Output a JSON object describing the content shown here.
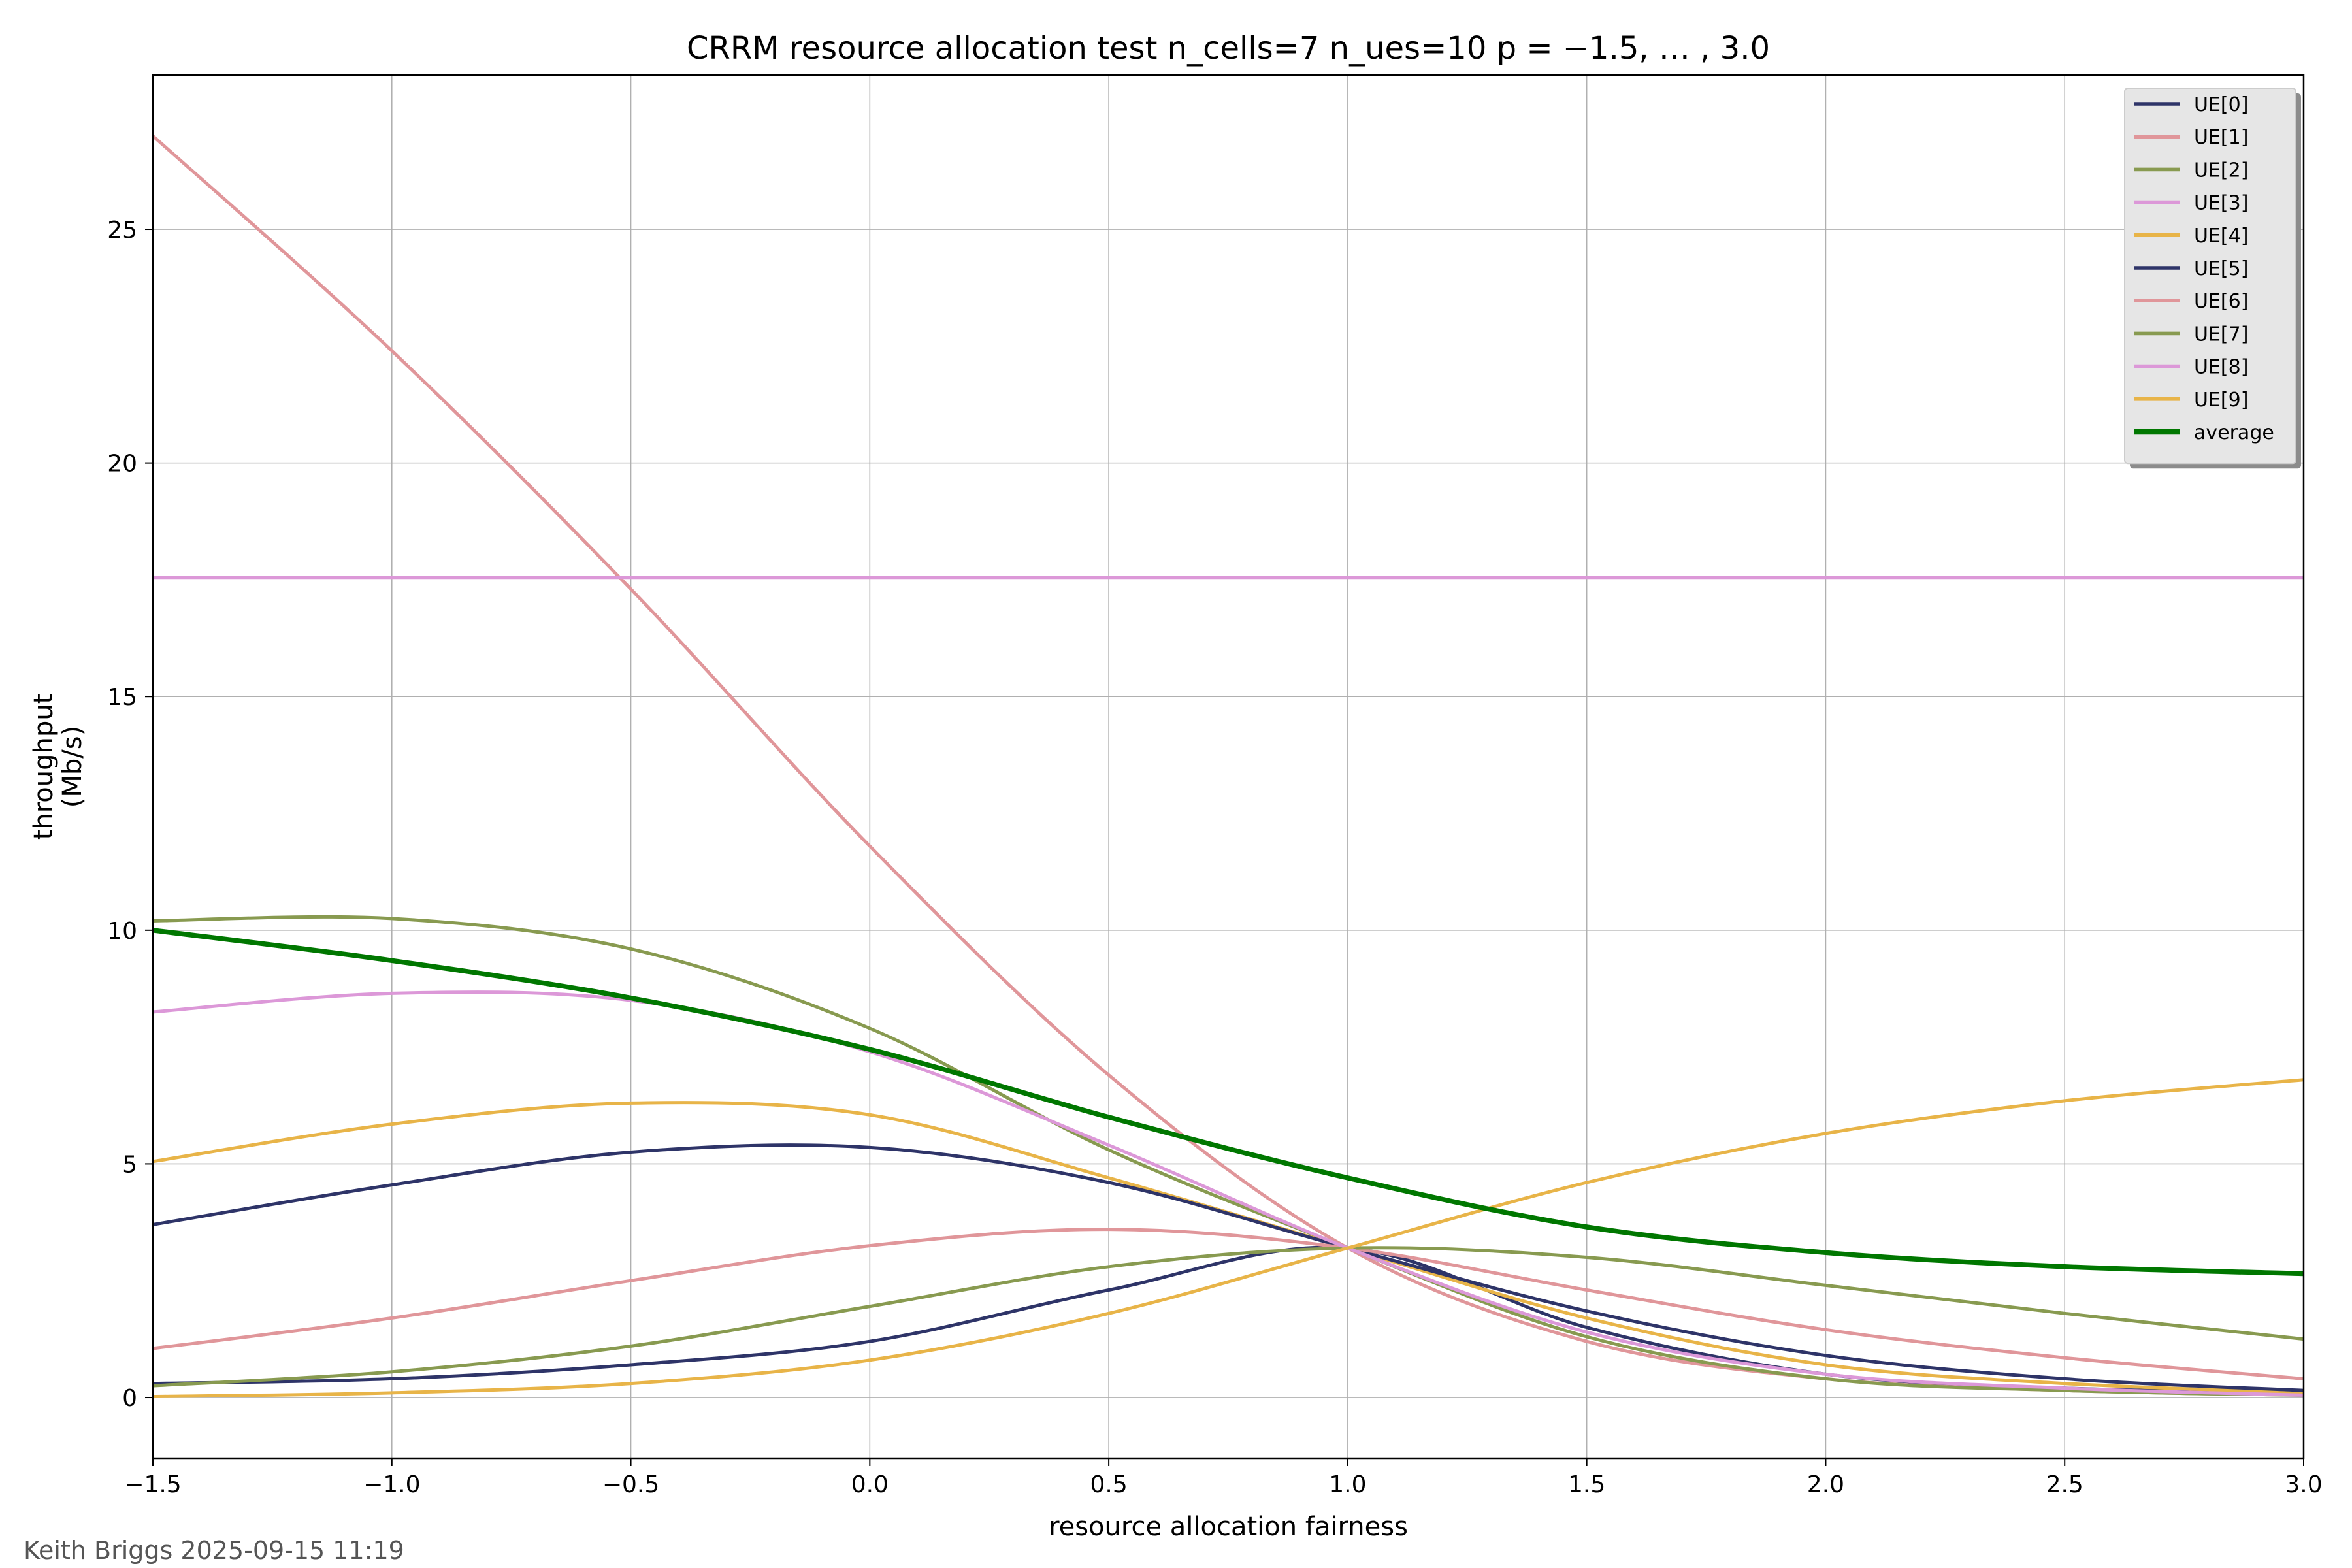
{
  "chart_data": {
    "type": "line",
    "title": "CRRM resource allocation test n_cells=7 n_ues=10 p = −1.5, … , 3.0",
    "xlabel": "resource allocation fairness",
    "ylabel_line1": "throughput",
    "ylabel_line2": "(Mb/s)",
    "xlim": [
      -1.5,
      3.0
    ],
    "ylim": [
      -1.3,
      28.3
    ],
    "xticks": [
      -1.5,
      -1.0,
      -0.5,
      0.0,
      0.5,
      1.0,
      1.5,
      2.0,
      2.5,
      3.0
    ],
    "xtick_labels": [
      "−1.5",
      "−1.0",
      "−0.5",
      "0.0",
      "0.5",
      "1.0",
      "1.5",
      "2.0",
      "2.5",
      "3.0"
    ],
    "yticks": [
      0,
      5,
      10,
      15,
      20,
      25
    ],
    "ytick_labels": [
      "0",
      "5",
      "10",
      "15",
      "20",
      "25"
    ],
    "grid": true,
    "legend_position": "top-right",
    "x": [
      -1.5,
      -1.0,
      -0.5,
      0.0,
      0.5,
      1.0,
      1.5,
      2.0,
      2.5,
      3.0
    ],
    "series": [
      {
        "name": "UE[0]",
        "color": "#2e3468",
        "width": 2,
        "values": [
          0.3,
          0.4,
          0.7,
          1.2,
          2.3,
          3.2,
          1.5,
          0.5,
          0.2,
          0.1
        ]
      },
      {
        "name": "UE[1]",
        "color": "#e0969a",
        "width": 2,
        "values": [
          27.0,
          22.4,
          17.3,
          11.8,
          6.9,
          3.2,
          1.2,
          0.4,
          0.15,
          0.05
        ]
      },
      {
        "name": "UE[2]",
        "color": "#889a50",
        "width": 2,
        "values": [
          10.2,
          10.25,
          9.6,
          7.9,
          5.3,
          3.2,
          1.3,
          0.4,
          0.15,
          0.05
        ]
      },
      {
        "name": "UE[3]",
        "color": "#dc98d8",
        "width": 2,
        "values": [
          17.55,
          17.55,
          17.55,
          17.55,
          17.55,
          17.55,
          17.55,
          17.55,
          17.55,
          17.55
        ]
      },
      {
        "name": "UE[4]",
        "color": "#e8b448",
        "width": 2,
        "values": [
          5.05,
          5.85,
          6.3,
          6.05,
          4.7,
          3.2,
          1.7,
          0.7,
          0.3,
          0.1
        ]
      },
      {
        "name": "UE[5]",
        "color": "#2e3468",
        "width": 2,
        "values": [
          3.7,
          4.55,
          5.25,
          5.35,
          4.6,
          3.2,
          1.85,
          0.9,
          0.4,
          0.15
        ]
      },
      {
        "name": "UE[6]",
        "color": "#e0969a",
        "width": 2,
        "values": [
          1.05,
          1.7,
          2.5,
          3.25,
          3.6,
          3.2,
          2.3,
          1.45,
          0.85,
          0.4
        ]
      },
      {
        "name": "UE[7]",
        "color": "#889a50",
        "width": 2,
        "values": [
          0.25,
          0.55,
          1.1,
          1.95,
          2.8,
          3.2,
          3.0,
          2.4,
          1.8,
          1.25
        ]
      },
      {
        "name": "UE[8]",
        "color": "#dc98d8",
        "width": 2,
        "values": [
          8.25,
          8.65,
          8.5,
          7.4,
          5.4,
          3.2,
          1.4,
          0.5,
          0.2,
          0.05
        ]
      },
      {
        "name": "UE[9]",
        "color": "#e8b448",
        "width": 2,
        "values": [
          0.02,
          0.1,
          0.3,
          0.8,
          1.8,
          3.2,
          4.6,
          5.65,
          6.35,
          6.8
        ]
      },
      {
        "name": "average",
        "color": "#007700",
        "width": 3,
        "values": [
          10.0,
          9.35,
          8.55,
          7.45,
          6.0,
          4.7,
          3.65,
          3.1,
          2.8,
          2.65
        ]
      }
    ]
  },
  "footer": {
    "text": "Keith Briggs 2025-09-15 11:19"
  }
}
